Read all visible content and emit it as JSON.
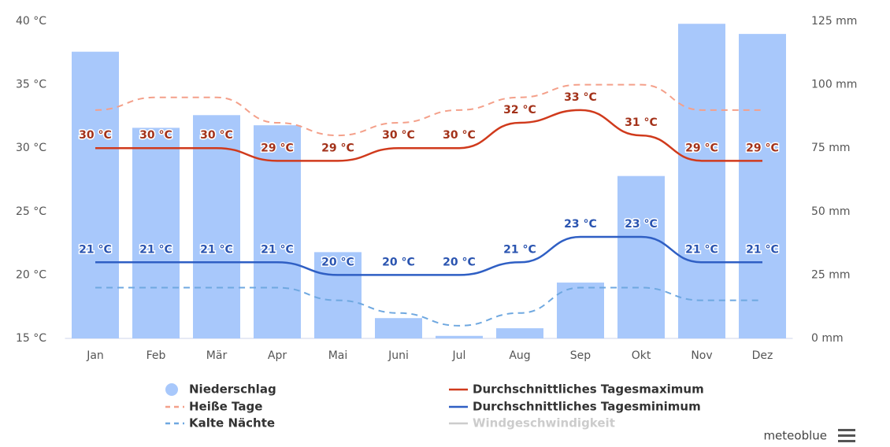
{
  "chart_data": {
    "type": "combo",
    "categories": [
      "Jan",
      "Feb",
      "Mär",
      "Apr",
      "Mai",
      "Juni",
      "Jul",
      "Aug",
      "Sep",
      "Okt",
      "Nov",
      "Dez"
    ],
    "ylim": [
      15,
      40
    ],
    "yticks": [
      {
        "value": 15,
        "label": "15 °C"
      },
      {
        "value": 20,
        "label": "20 °C"
      },
      {
        "value": 25,
        "label": "25 °C"
      },
      {
        "value": 30,
        "label": "30 °C"
      },
      {
        "value": 35,
        "label": "35 °C"
      },
      {
        "value": 40,
        "label": "40 °C"
      }
    ],
    "y2lim": [
      0,
      125
    ],
    "y2ticks": [
      {
        "value": 0,
        "label": "0 mm"
      },
      {
        "value": 25,
        "label": "25 mm"
      },
      {
        "value": 50,
        "label": "50 mm"
      },
      {
        "value": 75,
        "label": "75 mm"
      },
      {
        "value": 100,
        "label": "100 mm"
      },
      {
        "value": 125,
        "label": "125 mm"
      }
    ],
    "grid": false,
    "series": [
      {
        "name": "Niederschlag",
        "type": "bar",
        "axis": "y2",
        "color": "#a8c8fb",
        "values": [
          113,
          83,
          88,
          84,
          34,
          8,
          1,
          4,
          22,
          64,
          124,
          120
        ]
      },
      {
        "name": "Durchschnittliches Tagesmaximum",
        "type": "line",
        "color": "#d03a1c",
        "label_color": "#a3321a",
        "values": [
          30,
          30,
          30,
          29,
          29,
          30,
          30,
          32,
          33,
          31,
          29,
          29
        ],
        "value_labels": [
          "30 °C",
          "30 °C",
          "30 °C",
          "29 °C",
          "29 °C",
          "30 °C",
          "30 °C",
          "32 °C",
          "33 °C",
          "31 °C",
          "29 °C",
          "29 °C"
        ]
      },
      {
        "name": "Heiße Tage",
        "type": "line",
        "dashed": true,
        "color": "#f4a08a",
        "values": [
          33,
          34,
          34,
          32,
          31,
          32,
          33,
          34,
          35,
          35,
          33,
          33
        ]
      },
      {
        "name": "Durchschnittliches Tagesminimum",
        "type": "line",
        "color": "#2f5fc4",
        "label_color": "#2a54b0",
        "values": [
          21,
          21,
          21,
          21,
          20,
          20,
          20,
          21,
          23,
          23,
          21,
          21
        ],
        "value_labels": [
          "21 °C",
          "21 °C",
          "21 °C",
          "21 °C",
          "20 °C",
          "20 °C",
          "20 °C",
          "21 °C",
          "23 °C",
          "23 °C",
          "21 °C",
          "21 °C"
        ]
      },
      {
        "name": "Kalte Nächte",
        "type": "line",
        "dashed": true,
        "color": "#6fa8e0",
        "values": [
          19,
          19,
          19,
          19,
          18,
          17,
          16,
          17,
          19,
          19,
          18,
          18
        ]
      },
      {
        "name": "Windgeschwindigkeit",
        "type": "line",
        "color": "#cccccc",
        "visible": false
      }
    ]
  },
  "branding": "meteoblue"
}
